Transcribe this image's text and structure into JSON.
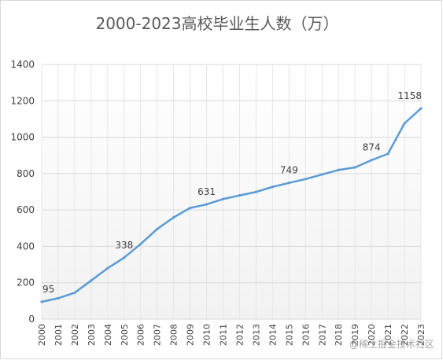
{
  "chart_data": {
    "type": "line",
    "title": "2000-2023高校毕业生人数（万）",
    "xlabel": "",
    "ylabel": "",
    "ylim": [
      0,
      1400
    ],
    "y_ticks": [
      "0",
      "200",
      "400",
      "600",
      "800",
      "1000",
      "1200",
      "1400"
    ],
    "grid": true,
    "x": [
      "2000",
      "2001",
      "2002",
      "2003",
      "2004",
      "2005",
      "2006",
      "2007",
      "2008",
      "2009",
      "2010",
      "2011",
      "2012",
      "2013",
      "2014",
      "2015",
      "2016",
      "2017",
      "2018",
      "2019",
      "2020",
      "2021",
      "2022",
      "2023"
    ],
    "series": [
      {
        "values": [
          95,
          115,
          145,
          212,
          280,
          338,
          413,
          495,
          559,
          611,
          631,
          660,
          680,
          699,
          727,
          749,
          770,
          795,
          820,
          834,
          874,
          909,
          1076,
          1158
        ],
        "color": "#5b9bd5"
      }
    ],
    "data_labels": [
      {
        "x": "2000",
        "text": "95"
      },
      {
        "x": "2005",
        "text": "338"
      },
      {
        "x": "2010",
        "text": "631"
      },
      {
        "x": "2015",
        "text": "749"
      },
      {
        "x": "2020",
        "text": "874"
      },
      {
        "x": "2023",
        "text": "1158"
      }
    ]
  },
  "watermark": "@稀土掘金技术社区"
}
